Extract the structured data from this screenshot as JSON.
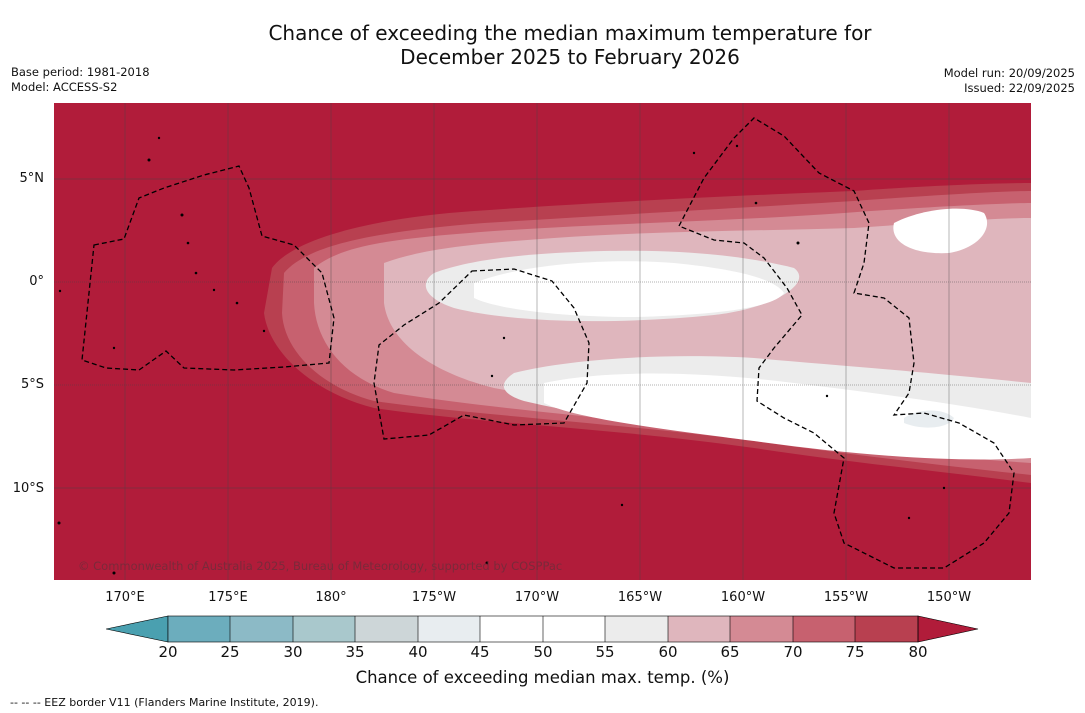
{
  "title": {
    "line1": "Chance of exceeding the median maximum temperature for",
    "line2": "December 2025 to February 2026"
  },
  "meta": {
    "base_period": "Base period: 1981-2018",
    "model": "Model: ACCESS-S2",
    "model_run": "Model run: 20/09/2025",
    "issued": "Issued: 22/09/2025"
  },
  "map": {
    "lat_labels": [
      "5°N",
      "0°",
      "5°S",
      "10°S"
    ],
    "lon_labels": [
      "170°E",
      "175°E",
      "180°",
      "175°W",
      "170°W",
      "165°W",
      "160°W",
      "155°W",
      "150°W"
    ],
    "copyright": "© Commonwealth of Australia 2025, Bureau of Meteorology, supported by COSPPac"
  },
  "colorbar": {
    "ticks": [
      "20",
      "25",
      "30",
      "35",
      "40",
      "45",
      "50",
      "55",
      "60",
      "65",
      "70",
      "75",
      "80"
    ],
    "colors": [
      "#4aa0b0",
      "#6cadbd",
      "#8cbac6",
      "#a9c8cc",
      "#cdd6d8",
      "#e8edf0",
      "#ffffff",
      "#ffffff",
      "#ececec",
      "#dfb6bd",
      "#d48a94",
      "#c7616f",
      "#b84050",
      "#b11c3a"
    ],
    "title": "Chance of exceeding median max. temp. (%)"
  },
  "footer": "--  --  -- EEZ border V11 (Flanders Marine Institute, 2019)."
}
